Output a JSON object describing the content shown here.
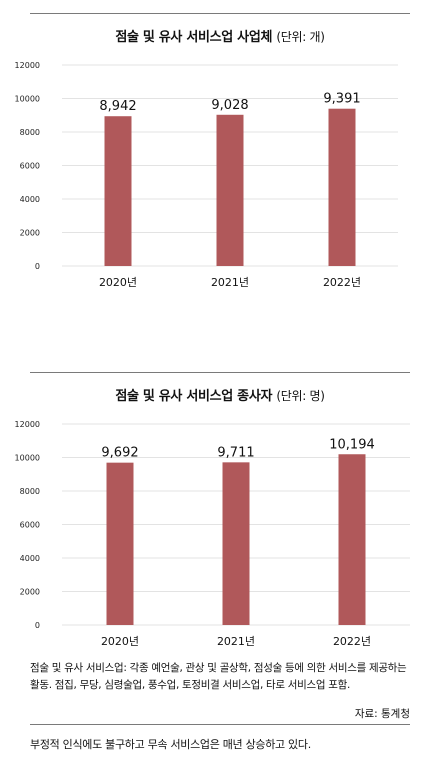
{
  "chart_data": [
    {
      "type": "bar",
      "title": "점술 및 유사 서비스업 사업체",
      "unit_label": "(단위: 개)",
      "categories": [
        "2020년",
        "2021년",
        "2022년"
      ],
      "values": [
        8942,
        9028,
        9391
      ],
      "value_labels": [
        "8,942",
        "9,028",
        "9,391"
      ],
      "y_ticks": [
        "0",
        "2000",
        "4000",
        "6000",
        "8000",
        "10000",
        "12000"
      ],
      "ylim": [
        0,
        12000
      ],
      "grid": true,
      "bar_color": "#b0585a"
    },
    {
      "type": "bar",
      "title": "점술 및 유사 서비스업 종사자",
      "unit_label": "(단위: 명)",
      "categories": [
        "2020년",
        "2021년",
        "2022년"
      ],
      "values": [
        9692,
        9711,
        10194
      ],
      "value_labels": [
        "9,692",
        "9,711",
        "10,194"
      ],
      "y_ticks": [
        "0",
        "2000",
        "4000",
        "6000",
        "8000",
        "10000",
        "12000"
      ],
      "ylim": [
        0,
        12000
      ],
      "grid": true,
      "bar_color": "#b0585a"
    }
  ],
  "note": "점술 및 유사 서비스업: 각종 예언술, 관상 및 골상학, 점성술 등에 의한 서비스를 제공하는 활동. 점집, 무당, 심령술업, 풍수업, 토정비결 서비스업, 타로 서비스업 포함.",
  "source": "자료: 통계청",
  "caption": "부정적 인식에도 불구하고 무속 서비스업은 매년 상승하고 있다."
}
